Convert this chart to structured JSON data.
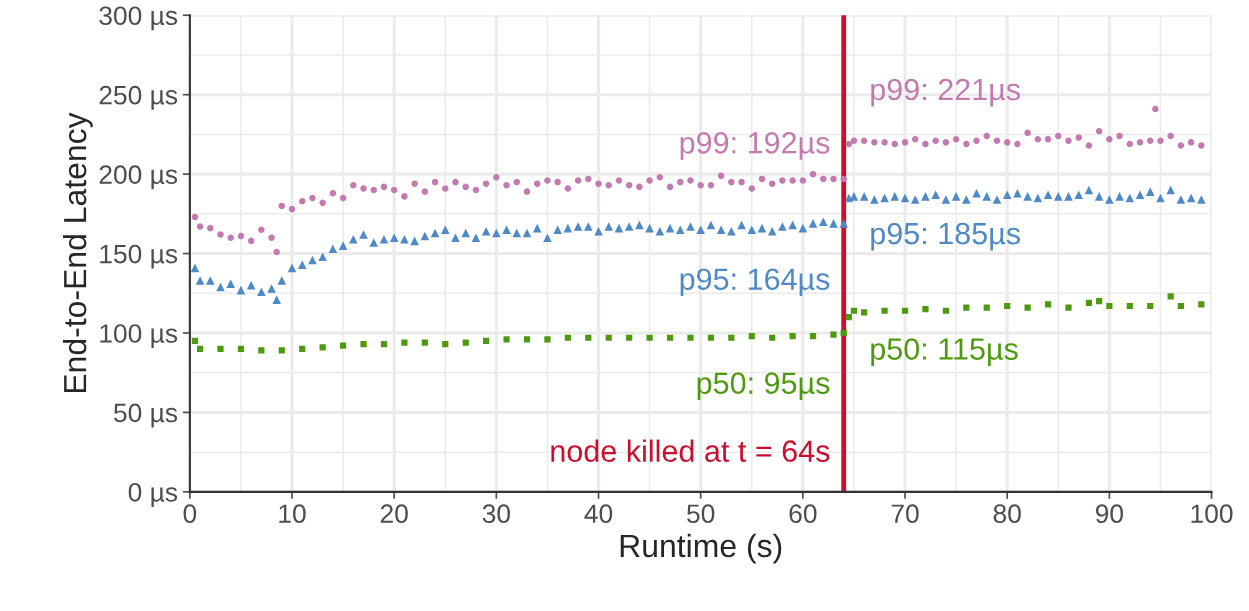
{
  "chart_data": {
    "type": "scatter",
    "xlabel": "Runtime (s)",
    "ylabel": "End-to-End Latency",
    "xlim": [
      0,
      100
    ],
    "xticks": [
      0,
      10,
      20,
      30,
      40,
      50,
      60,
      70,
      80,
      90,
      100
    ],
    "ylim": [
      0,
      300
    ],
    "yticks": [
      {
        "value": 0,
        "label": "0 µs"
      },
      {
        "value": 50,
        "label": "50 µs"
      },
      {
        "value": 100,
        "label": "100 µs"
      },
      {
        "value": 150,
        "label": "150 µs"
      },
      {
        "value": 200,
        "label": "200 µs"
      },
      {
        "value": 250,
        "label": "250 µs"
      },
      {
        "value": 300,
        "label": "300 µs"
      }
    ],
    "grid": true,
    "legend": false,
    "series": [
      {
        "color": "#c27ab0",
        "marker": "circle",
        "x": [
          0.5,
          1,
          2,
          3,
          4,
          5,
          6,
          7,
          8,
          8.5,
          9,
          10,
          11,
          12,
          13,
          14,
          15,
          16,
          17,
          18,
          19,
          20,
          21,
          22,
          23,
          24,
          25,
          26,
          27,
          28,
          29,
          30,
          31,
          32,
          33,
          34,
          35,
          36,
          37,
          38,
          39,
          40,
          41,
          42,
          43,
          44,
          45,
          46,
          47,
          48,
          49,
          50,
          51,
          52,
          53,
          54,
          55,
          56,
          57,
          58,
          59,
          60,
          61,
          62,
          63,
          64,
          64.5,
          65,
          66,
          67,
          68,
          69,
          70,
          71,
          72,
          73,
          74,
          75,
          76,
          77,
          78,
          79,
          80,
          81,
          82,
          83,
          84,
          85,
          86,
          87,
          88,
          89,
          90,
          91,
          92,
          93,
          94,
          94.5,
          95,
          96,
          97,
          98,
          99
        ],
        "values": [
          173,
          167,
          166,
          162,
          160,
          161,
          158,
          165,
          160,
          151,
          180,
          178,
          183,
          185,
          182,
          188,
          185,
          193,
          191,
          190,
          192,
          190,
          186,
          194,
          189,
          195,
          191,
          195,
          192,
          190,
          194,
          198,
          193,
          195,
          189,
          194,
          196,
          195,
          191,
          196,
          197,
          194,
          193,
          196,
          193,
          192,
          196,
          198,
          192,
          195,
          196,
          193,
          193,
          199,
          195,
          195,
          191,
          197,
          194,
          196,
          196,
          196,
          200,
          197,
          197,
          197,
          219,
          221,
          221,
          220,
          220,
          219,
          220,
          222,
          219,
          221,
          220,
          222,
          219,
          221,
          224,
          221,
          220,
          219,
          226,
          222,
          222,
          224,
          221,
          223,
          218,
          227,
          222,
          224,
          219,
          220,
          221,
          241,
          221,
          224,
          218,
          220,
          218
        ]
      },
      {
        "color": "#4f8ac6",
        "marker": "triangle",
        "x": [
          0.5,
          1,
          2,
          3,
          4,
          5,
          6,
          7,
          8,
          8.5,
          9,
          10,
          11,
          12,
          13,
          14,
          15,
          16,
          17,
          18,
          19,
          20,
          21,
          22,
          23,
          24,
          25,
          26,
          27,
          28,
          29,
          30,
          31,
          32,
          33,
          34,
          35,
          36,
          37,
          38,
          39,
          40,
          41,
          42,
          43,
          44,
          45,
          46,
          47,
          48,
          49,
          50,
          51,
          52,
          53,
          54,
          55,
          56,
          57,
          58,
          59,
          60,
          61,
          62,
          63,
          64,
          64.5,
          65,
          66,
          67,
          68,
          69,
          70,
          71,
          72,
          73,
          74,
          75,
          76,
          77,
          78,
          79,
          80,
          81,
          82,
          83,
          84,
          85,
          86,
          87,
          88,
          89,
          90,
          91,
          92,
          93,
          94,
          95,
          96,
          97,
          98,
          99
        ],
        "values": [
          141,
          133,
          133,
          129,
          131,
          127,
          130,
          126,
          128,
          121,
          133,
          141,
          143,
          146,
          148,
          153,
          155,
          159,
          162,
          157,
          159,
          160,
          159,
          158,
          161,
          163,
          165,
          160,
          163,
          160,
          164,
          163,
          165,
          163,
          163,
          166,
          160,
          165,
          166,
          167,
          167,
          164,
          167,
          166,
          167,
          168,
          166,
          164,
          166,
          165,
          167,
          165,
          168,
          165,
          164,
          168,
          165,
          166,
          164,
          167,
          168,
          166,
          169,
          170,
          169,
          169,
          185,
          186,
          186,
          184,
          185,
          186,
          185,
          184,
          186,
          187,
          184,
          186,
          184,
          188,
          186,
          184,
          187,
          188,
          186,
          185,
          187,
          186,
          186,
          187,
          190,
          186,
          184,
          186,
          185,
          187,
          189,
          185,
          190,
          184,
          185,
          184
        ]
      },
      {
        "color": "#4e9a0f",
        "marker": "square",
        "x": [
          0.5,
          1,
          3,
          5,
          7,
          9,
          11,
          13,
          15,
          17,
          19,
          21,
          23,
          25,
          27,
          29,
          31,
          33,
          35,
          37,
          39,
          41,
          43,
          45,
          47,
          49,
          51,
          53,
          55,
          57,
          59,
          61,
          63,
          64,
          64.5,
          65,
          66,
          68,
          70,
          72,
          74,
          76,
          78,
          80,
          82,
          84,
          86,
          88,
          89,
          90,
          92,
          94,
          96,
          97,
          99
        ],
        "values": [
          95,
          90,
          90,
          90,
          89,
          89,
          90,
          91,
          92,
          93,
          93,
          94,
          94,
          93,
          94,
          95,
          96,
          96,
          96,
          97,
          97,
          97,
          97,
          97,
          97,
          97,
          97,
          97,
          98,
          97,
          98,
          98,
          99,
          100,
          110,
          114,
          113,
          114,
          114,
          115,
          114,
          116,
          116,
          117,
          116,
          118,
          116,
          119,
          120,
          117,
          117,
          117,
          123,
          117,
          118
        ]
      }
    ],
    "ref_lines": [
      {
        "axis": "x",
        "value": 64,
        "label": "node killed at t = 64s",
        "color": "#c8102e"
      }
    ],
    "annotations": [
      "p99: 192µs",
      "p95: 164µs",
      "p50: 95µs",
      "p99: 221µs",
      "p95: 185µs",
      "p50: 115µs"
    ]
  }
}
